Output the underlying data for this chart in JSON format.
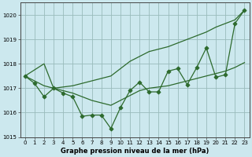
{
  "x": [
    0,
    1,
    2,
    3,
    4,
    5,
    6,
    7,
    8,
    9,
    10,
    11,
    12,
    13,
    14,
    15,
    16,
    17,
    18,
    19,
    20,
    21,
    22,
    23
  ],
  "pressure": [
    1017.5,
    1017.2,
    1016.65,
    1017.0,
    1016.8,
    1016.65,
    1015.85,
    1015.9,
    1015.9,
    1015.35,
    1016.2,
    1016.9,
    1017.25,
    1016.85,
    1016.85,
    1017.7,
    1017.8,
    1017.15,
    1017.85,
    1018.65,
    1017.45,
    1017.55,
    1019.65,
    1020.2
  ],
  "max_line": [
    1017.5,
    1017.75,
    1018.0,
    1017.0,
    1017.05,
    1017.1,
    1017.2,
    1017.3,
    1017.4,
    1017.5,
    1017.8,
    1018.1,
    1018.3,
    1018.5,
    1018.6,
    1018.7,
    1018.85,
    1019.0,
    1019.15,
    1019.3,
    1019.5,
    1019.65,
    1019.8,
    1020.2
  ],
  "min_line": [
    1017.5,
    1017.3,
    1017.1,
    1017.0,
    1016.9,
    1016.8,
    1016.65,
    1016.5,
    1016.4,
    1016.3,
    1016.5,
    1016.7,
    1016.9,
    1017.0,
    1017.05,
    1017.1,
    1017.2,
    1017.3,
    1017.4,
    1017.5,
    1017.6,
    1017.7,
    1017.85,
    1018.05
  ],
  "line_color": "#2d6a2d",
  "bg_color": "#cce8ee",
  "grid_color": "#99bbbb",
  "xlabel": "Graphe pression niveau de la mer (hPa)",
  "ylim": [
    1015.0,
    1020.5
  ],
  "xlim_left": -0.5,
  "xlim_right": 23.5,
  "yticks": [
    1015,
    1016,
    1017,
    1018,
    1019,
    1020
  ],
  "xticks": [
    0,
    1,
    2,
    3,
    4,
    5,
    6,
    7,
    8,
    9,
    10,
    11,
    12,
    13,
    14,
    15,
    16,
    17,
    18,
    19,
    20,
    21,
    22,
    23
  ]
}
